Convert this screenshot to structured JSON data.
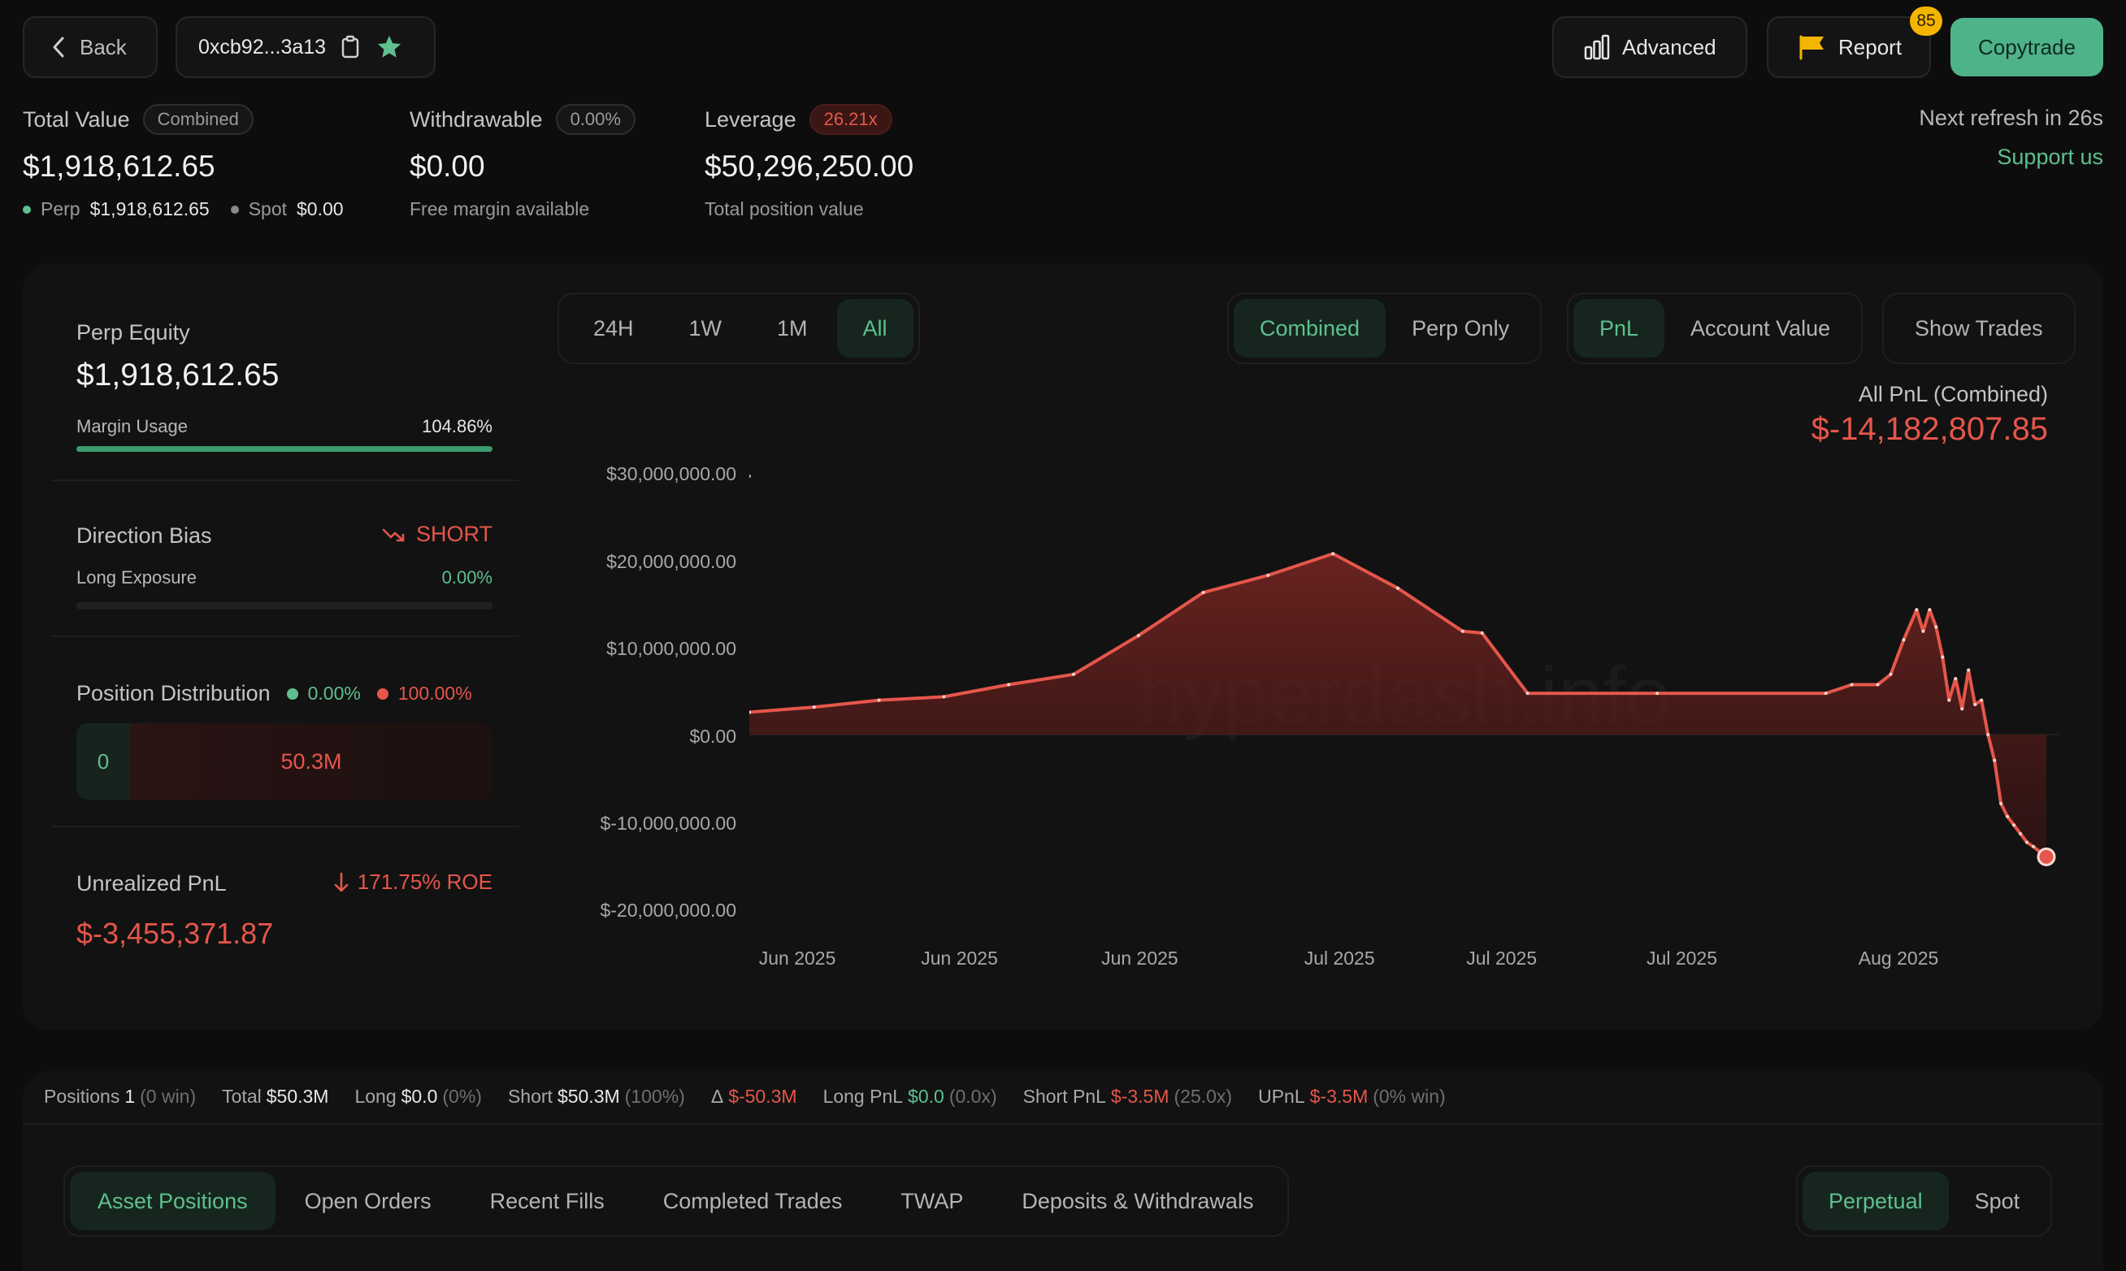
{
  "header": {
    "back_label": "Back",
    "address": "0xcb92...3a13",
    "advanced_label": "Advanced",
    "report_label": "Report",
    "report_badge": "85",
    "copytrade_label": "Copytrade"
  },
  "summary": {
    "total_value_label": "Total Value",
    "total_value_pill": "Combined",
    "total_value": "$1,918,612.65",
    "perp_label": "Perp",
    "perp_value": "$1,918,612.65",
    "spot_label": "Spot",
    "spot_value": "$0.00",
    "withdrawable_label": "Withdrawable",
    "withdrawable_pill": "0.00%",
    "withdrawable_value": "$0.00",
    "withdrawable_sub": "Free margin available",
    "leverage_label": "Leverage",
    "leverage_pill": "26.21x",
    "leverage_value": "$50,296,250.00",
    "leverage_sub": "Total position value",
    "refresh": "Next refresh in 26s",
    "support": "Support us"
  },
  "left_panel": {
    "perp_equity_label": "Perp Equity",
    "perp_equity_value": "$1,918,612.65",
    "margin_usage_label": "Margin Usage",
    "margin_usage_value": "104.86%",
    "margin_usage_fraction": 1.0,
    "direction_bias_label": "Direction Bias",
    "direction_bias_value": "SHORT",
    "long_exposure_label": "Long Exposure",
    "long_exposure_value": "0.00%",
    "position_dist_label": "Position Distribution",
    "dist_long_pct": "0.00%",
    "dist_short_pct": "100.00%",
    "dist_long_amount": "0",
    "dist_short_amount": "50.3M",
    "unrealized_label": "Unrealized PnL",
    "roe": "171.75% ROE",
    "unrealized_value": "$-3,455,371.87"
  },
  "chart_controls": {
    "ranges": [
      "24H",
      "1W",
      "1M",
      "All"
    ],
    "active_range": "All",
    "scope": [
      "Combined",
      "Perp Only"
    ],
    "metric": [
      "PnL",
      "Account Value"
    ],
    "show_trades": "Show Trades"
  },
  "chart_data": {
    "type": "area",
    "title": "All PnL (Combined)",
    "headline_value": "$-14,182,807.85",
    "watermark": "hyperdash.info",
    "y_ticks": [
      "$30,000,000.00",
      "$20,000,000.00",
      "$10,000,000.00",
      "$0.00",
      "$-10,000,000.00",
      "$-20,000,000.00"
    ],
    "x_ticks": [
      "Jun 2025",
      "Jun 2025",
      "Jun 2025",
      "Jul 2025",
      "Jul 2025",
      "Jul 2025",
      "Aug 2025"
    ],
    "ylim": [
      -20000000,
      30000000
    ],
    "x_range": [
      0,
      100
    ],
    "x_tick_positions": [
      3.7,
      16.2,
      30.1,
      45.5,
      58.0,
      71.9,
      88.6
    ],
    "series": [
      {
        "name": "PnL",
        "x": [
          0,
          5,
          10,
          15,
          20,
          25,
          30,
          35,
          40,
          45,
          50,
          55,
          56.5,
          60,
          70,
          83,
          85,
          87,
          88,
          89,
          90,
          90.5,
          91,
          91.5,
          92,
          92.5,
          93,
          93.5,
          94,
          94.5,
          95,
          95.5,
          96,
          96.5,
          97,
          97.5,
          98,
          98.5,
          99,
          100
        ],
        "values": [
          2600000,
          3200000,
          4000000,
          4400000,
          5800000,
          7000000,
          11500000,
          16500000,
          18500000,
          21000000,
          17000000,
          12000000,
          11800000,
          4800000,
          4800000,
          4800000,
          5800000,
          5800000,
          7000000,
          11000000,
          14500000,
          12000000,
          14500000,
          12500000,
          9000000,
          4000000,
          6500000,
          3000000,
          7500000,
          3500000,
          4000000,
          0,
          -3000000,
          -8000000,
          -9500000,
          -10500000,
          -11500000,
          -12500000,
          -13000000,
          -14182807
        ]
      }
    ]
  },
  "stats": {
    "positions_label": "Positions",
    "positions_value": "1",
    "positions_win": "(0 win)",
    "total_label": "Total",
    "total_value": "$50.3M",
    "long_label": "Long",
    "long_value": "$0.0",
    "long_pct": "(0%)",
    "short_label": "Short",
    "short_value": "$50.3M",
    "short_pct": "(100%)",
    "delta_label": "Δ",
    "delta_value": "$-50.3M",
    "long_pnl_label": "Long PnL",
    "long_pnl_value": "$0.0",
    "long_pnl_x": "(0.0x)",
    "short_pnl_label": "Short PnL",
    "short_pnl_value": "$-3.5M",
    "short_pnl_x": "(25.0x)",
    "upnl_label": "UPnL",
    "upnl_value": "$-3.5M",
    "upnl_win": "(0% win)"
  },
  "tabs": {
    "items": [
      "Asset Positions",
      "Open Orders",
      "Recent Fills",
      "Completed Trades",
      "TWAP",
      "Deposits & Withdrawals"
    ],
    "active": "Asset Positions",
    "market": [
      "Perpetual",
      "Spot"
    ],
    "active_market": "Perpetual"
  },
  "colors": {
    "accent_green": "#5fbf8f",
    "accent_red": "#e5564b",
    "background": "#0d0d0d"
  }
}
